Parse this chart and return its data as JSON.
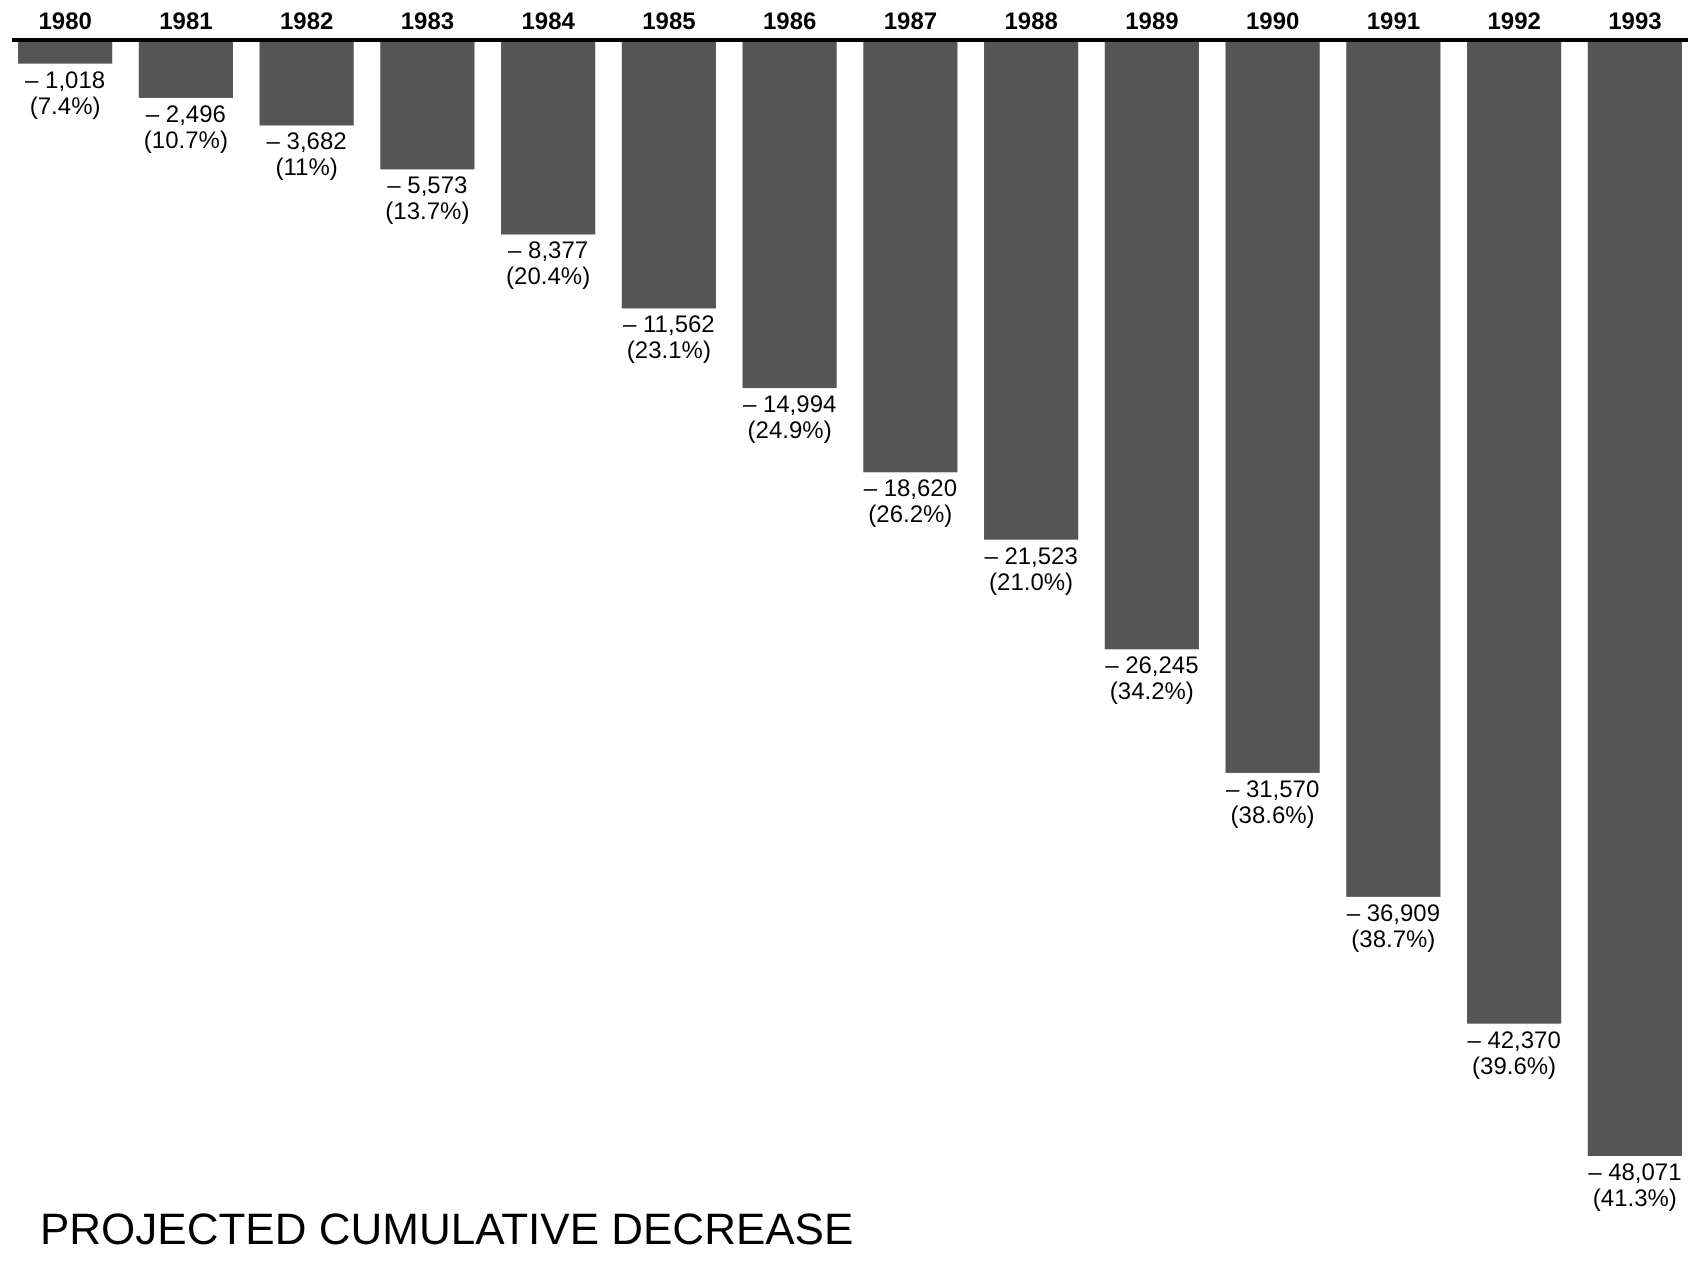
{
  "chart_data": {
    "type": "bar",
    "title": "PROJECTED CUMULATIVE DECREASE",
    "categories": [
      "1980",
      "1981",
      "1982",
      "1983",
      "1984",
      "1985",
      "1986",
      "1987",
      "1988",
      "1989",
      "1990",
      "1991",
      "1992",
      "1993"
    ],
    "values": [
      -1018,
      -2496,
      -3682,
      -5573,
      -8377,
      -11562,
      -14994,
      -18620,
      -21523,
      -26245,
      -31570,
      -36909,
      -42370,
      -48071
    ],
    "value_labels": [
      "– 1,018\n(7.4%)",
      "– 2,496\n(10.7%)",
      "– 3,682\n(11%)",
      "– 5,573\n(13.7%)",
      "– 8,377\n(20.4%)",
      "– 11,562\n(23.1%)",
      "– 14,994\n(24.9%)",
      "– 18,620\n(26.2%)",
      "– 21,523\n(21.0%)",
      "– 26,245\n(34.2%)",
      "– 31,570\n(38.6%)",
      "– 36,909\n(38.7%)",
      "– 42,370\n(39.6%)",
      "– 48,071\n(41.3%)"
    ],
    "color": "#555555"
  }
}
